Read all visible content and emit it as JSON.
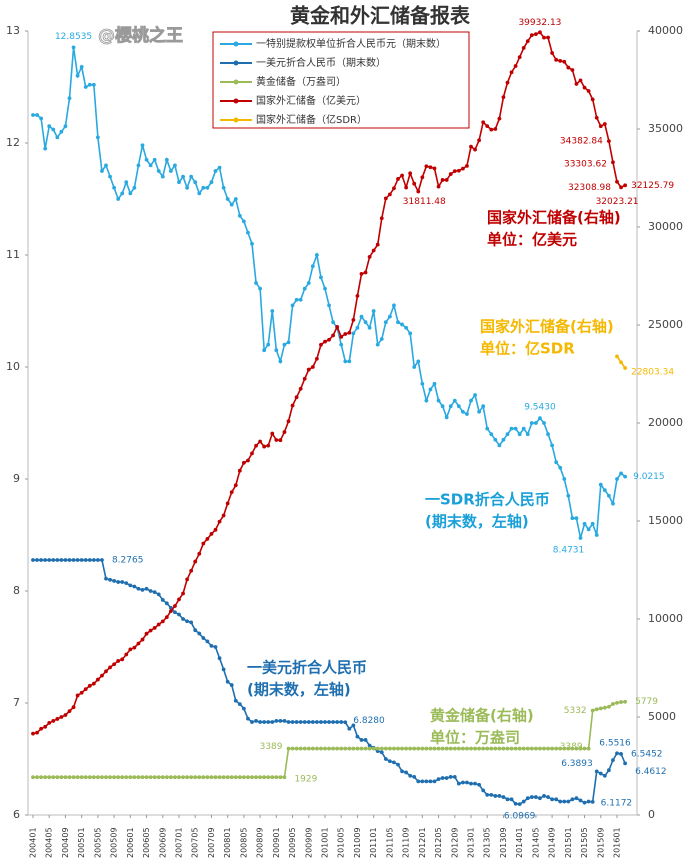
{
  "chart_data": {
    "type": "line",
    "title": "黄金和外汇储备报表",
    "watermark": "@樱桃之王",
    "ylim": [
      6,
      13
    ],
    "yticks": [
      6,
      7,
      8,
      9,
      10,
      11,
      12,
      13
    ],
    "y2lim": [
      0,
      40000
    ],
    "y2ticks": [
      0,
      5000,
      10000,
      15000,
      20000,
      25000,
      30000,
      35000,
      40000
    ],
    "grid": false,
    "legend": "top",
    "categories": [
      "200401",
      null,
      null,
      null,
      "200405",
      null,
      null,
      null,
      "200409",
      null,
      null,
      null,
      "200501",
      null,
      null,
      null,
      "200505",
      null,
      null,
      null,
      "200509",
      null,
      null,
      null,
      "200601",
      null,
      null,
      null,
      "200605",
      null,
      null,
      null,
      "200609",
      null,
      null,
      null,
      "200701",
      null,
      null,
      null,
      "200705",
      null,
      null,
      null,
      "200709",
      null,
      null,
      null,
      "200801",
      null,
      null,
      null,
      "200805",
      null,
      null,
      null,
      "200809",
      null,
      null,
      null,
      "200901",
      null,
      null,
      null,
      "200905",
      null,
      null,
      null,
      "200909",
      null,
      null,
      null,
      "201001",
      null,
      null,
      null,
      "201005",
      null,
      null,
      null,
      "201009",
      null,
      null,
      null,
      "201101",
      null,
      null,
      null,
      "201105",
      null,
      null,
      null,
      "201109",
      null,
      null,
      null,
      "201201",
      null,
      null,
      null,
      "201205",
      null,
      null,
      null,
      "201209",
      null,
      null,
      null,
      "201301",
      null,
      null,
      null,
      "201305",
      null,
      null,
      null,
      "201309",
      null,
      null,
      null,
      "201401",
      null,
      null,
      null,
      "201405",
      null,
      null,
      null,
      "201409",
      null,
      null,
      null,
      "201501",
      null,
      null,
      null,
      "201505",
      null,
      null,
      null,
      "201509",
      null,
      null,
      null,
      "201601",
      null,
      null
    ],
    "series": [
      {
        "name": "一特别提款权单位折合人民币元（期末数）",
        "color": "#29a9e0",
        "values": [
          12.25,
          12.25,
          12.22,
          11.95,
          12.15,
          12.12,
          12.05,
          12.1,
          12.15,
          12.4,
          12.8535,
          12.6,
          12.68,
          12.5,
          12.52,
          12.52,
          12.05,
          11.75,
          11.8,
          11.7,
          11.6,
          11.5,
          11.55,
          11.65,
          11.55,
          11.6,
          11.8,
          11.98,
          11.85,
          11.8,
          11.85,
          11.75,
          11.7,
          11.85,
          11.75,
          11.8,
          11.65,
          11.7,
          11.6,
          11.7,
          11.65,
          11.55,
          11.6,
          11.6,
          11.65,
          11.75,
          11.78,
          11.6,
          11.5,
          11.45,
          11.5,
          11.35,
          11.3,
          11.2,
          11.1,
          10.75,
          10.7,
          10.15,
          10.2,
          10.5,
          10.15,
          10.05,
          10.2,
          10.22,
          10.55,
          10.6,
          10.6,
          10.7,
          10.75,
          10.9,
          11.0,
          10.8,
          10.7,
          10.55,
          10.4,
          10.35,
          10.2,
          10.05,
          10.05,
          10.3,
          10.35,
          10.45,
          10.4,
          10.35,
          10.5,
          10.2,
          10.25,
          10.4,
          10.45,
          10.55,
          10.4,
          10.38,
          10.35,
          10.3,
          10.0,
          10.05,
          9.85,
          9.7,
          9.8,
          9.85,
          9.7,
          9.65,
          9.55,
          9.65,
          9.7,
          9.65,
          9.6,
          9.58,
          9.7,
          9.75,
          9.6,
          9.65,
          9.45,
          9.4,
          9.35,
          9.3,
          9.35,
          9.4,
          9.45,
          9.45,
          9.4,
          9.45,
          9.4,
          9.5,
          9.5,
          9.543,
          9.5,
          9.4,
          9.3,
          9.15,
          9.1,
          9.0,
          8.85,
          8.65,
          8.65,
          8.4731,
          8.6,
          8.55,
          8.6,
          8.5,
          8.95,
          8.9,
          8.85,
          8.78,
          9.0,
          9.05,
          9.0215
        ],
        "value_labels": {
          "10": "12.8535",
          "125": "9.5430",
          "135": "8.4731",
          "146": "9.0215"
        }
      },
      {
        "name": "一美元折合人民币（期末数）",
        "color": "#1f6fb0",
        "values": [
          8.2765,
          8.2765,
          8.2765,
          8.2765,
          8.2765,
          8.2765,
          8.2765,
          8.2765,
          8.2765,
          8.2765,
          8.2765,
          8.2765,
          8.2765,
          8.2765,
          8.2765,
          8.2765,
          8.2765,
          8.2765,
          8.11,
          8.1,
          8.09,
          8.08,
          8.08,
          8.07,
          8.05,
          8.04,
          8.02,
          8.01,
          8.02,
          8.0,
          7.99,
          7.97,
          7.92,
          7.89,
          7.85,
          7.81,
          7.79,
          7.75,
          7.73,
          7.72,
          7.65,
          7.62,
          7.58,
          7.55,
          7.51,
          7.5,
          7.4,
          7.3,
          7.19,
          7.16,
          7.02,
          6.99,
          6.95,
          6.86,
          6.83,
          6.84,
          6.83,
          6.83,
          6.83,
          6.83,
          6.84,
          6.84,
          6.84,
          6.83,
          6.83,
          6.83,
          6.83,
          6.83,
          6.83,
          6.83,
          6.83,
          6.83,
          6.83,
          6.83,
          6.83,
          6.83,
          6.83,
          6.828,
          6.77,
          6.8,
          6.7,
          6.67,
          6.67,
          6.62,
          6.6,
          6.57,
          6.56,
          6.5,
          6.48,
          6.47,
          6.45,
          6.39,
          6.38,
          6.35,
          6.34,
          6.3,
          6.3,
          6.3,
          6.3,
          6.3,
          6.32,
          6.33,
          6.33,
          6.34,
          6.34,
          6.28,
          6.29,
          6.29,
          6.28,
          6.28,
          6.27,
          6.22,
          6.18,
          6.18,
          6.17,
          6.17,
          6.16,
          6.14,
          6.14,
          6.1,
          6.0969,
          6.12,
          6.15,
          6.16,
          6.16,
          6.15,
          6.17,
          6.16,
          6.14,
          6.14,
          6.12,
          6.12,
          6.12,
          6.14,
          6.15,
          6.13,
          6.11,
          6.12,
          6.1172,
          6.3893,
          6.37,
          6.35,
          6.4,
          6.49,
          6.5516,
          6.5452,
          6.4612
        ],
        "value_labels": {
          "17": "8.2765",
          "77": "6.8280",
          "120": "6.0969",
          "138": "6.1172",
          "139": "6.3893",
          "144": "6.5516",
          "145": "6.5452",
          "146": "6.4612"
        }
      },
      {
        "name": "黄金储备（万盎司）",
        "color": "#9bbb59",
        "axis": "y2",
        "values": [
          1929,
          1929,
          1929,
          1929,
          1929,
          1929,
          1929,
          1929,
          1929,
          1929,
          1929,
          1929,
          1929,
          1929,
          1929,
          1929,
          1929,
          1929,
          1929,
          1929,
          1929,
          1929,
          1929,
          1929,
          1929,
          1929,
          1929,
          1929,
          1929,
          1929,
          1929,
          1929,
          1929,
          1929,
          1929,
          1929,
          1929,
          1929,
          1929,
          1929,
          1929,
          1929,
          1929,
          1929,
          1929,
          1929,
          1929,
          1929,
          1929,
          1929,
          1929,
          1929,
          1929,
          1929,
          1929,
          1929,
          1929,
          1929,
          1929,
          1929,
          1929,
          1929,
          1929,
          3389,
          3389,
          3389,
          3389,
          3389,
          3389,
          3389,
          3389,
          3389,
          3389,
          3389,
          3389,
          3389,
          3389,
          3389,
          3389,
          3389,
          3389,
          3389,
          3389,
          3389,
          3389,
          3389,
          3389,
          3389,
          3389,
          3389,
          3389,
          3389,
          3389,
          3389,
          3389,
          3389,
          3389,
          3389,
          3389,
          3389,
          3389,
          3389,
          3389,
          3389,
          3389,
          3389,
          3389,
          3389,
          3389,
          3389,
          3389,
          3389,
          3389,
          3389,
          3389,
          3389,
          3389,
          3389,
          3389,
          3389,
          3389,
          3389,
          3389,
          3389,
          3389,
          3389,
          3389,
          3389,
          3389,
          3389,
          3389,
          3389,
          3389,
          3389,
          3389,
          3389,
          3389,
          3389,
          5332,
          5393,
          5436,
          5475,
          5524,
          5666,
          5719,
          5762,
          5779
        ],
        "value_labels": {
          "62": "1929",
          "63": "3389",
          "137": "3389",
          "138": "5332",
          "146": "5779"
        }
      },
      {
        "name": "国家外汇储备（亿美元）",
        "color": "#c00000",
        "axis": "y2",
        "values": [
          4150,
          4200,
          4400,
          4500,
          4700,
          4800,
          4900,
          5000,
          5100,
          5300,
          5500,
          6099,
          6236,
          6423,
          6591,
          6700,
          6910,
          7110,
          7330,
          7532,
          7690,
          7860,
          7942,
          8189,
          8451,
          8537,
          8751,
          8950,
          9250,
          9411,
          9545,
          9720,
          9879,
          10096,
          10400,
          10663,
          11000,
          11300,
          12020,
          12460,
          12930,
          13326,
          13850,
          14086,
          14340,
          14550,
          14970,
          15282,
          15898,
          16471,
          16822,
          17566,
          17970,
          18088,
          18451,
          18841,
          19056,
          18797,
          18847,
          19460,
          19134,
          19122,
          19537,
          20089,
          20893,
          21316,
          21746,
          22257,
          22726,
          22856,
          23279,
          23992,
          24153,
          24246,
          24470,
          24905,
          24395,
          24542,
          24605,
          25263,
          26483,
          27608,
          27678,
          28473,
          28800,
          29100,
          30447,
          31458,
          31663,
          31975,
          32452,
          32625,
          32017,
          32738,
          32209,
          31811.48,
          32536,
          33100,
          33050,
          32989,
          32061,
          32400,
          32400,
          32700,
          32850,
          32870,
          32980,
          33116,
          34100,
          33950,
          34426,
          35345,
          35148,
          34967,
          35000,
          35530,
          36627,
          37366,
          37895,
          38213,
          38666,
          39137,
          39481,
          39788,
          39839,
          39932.13,
          39662,
          39668,
          38877,
          38529,
          38473,
          38430,
          38134,
          38012,
          37300,
          37480,
          37111,
          36938,
          36513,
          35574,
          35141,
          35255,
          34382.84,
          33303.62,
          32308.98,
          32023.21,
          32125.79
        ],
        "value_labels": {
          "95": "31811.48",
          "125": "39932.13",
          "142": "34382.84",
          "143": "33303.62",
          "144": "32308.98",
          "145": "32023.21",
          "146": "32125.79"
        }
      },
      {
        "name": "国家外汇储备（亿SDR）",
        "color": "#f5b800",
        "axis": "y2",
        "values": [
          null,
          null,
          null,
          null,
          null,
          null,
          null,
          null,
          null,
          null,
          null,
          null,
          null,
          null,
          null,
          null,
          null,
          null,
          null,
          null,
          null,
          null,
          null,
          null,
          null,
          null,
          null,
          null,
          null,
          null,
          null,
          null,
          null,
          null,
          null,
          null,
          null,
          null,
          null,
          null,
          null,
          null,
          null,
          null,
          null,
          null,
          null,
          null,
          null,
          null,
          null,
          null,
          null,
          null,
          null,
          null,
          null,
          null,
          null,
          null,
          null,
          null,
          null,
          null,
          null,
          null,
          null,
          null,
          null,
          null,
          null,
          null,
          null,
          null,
          null,
          null,
          null,
          null,
          null,
          null,
          null,
          null,
          null,
          null,
          null,
          null,
          null,
          null,
          null,
          null,
          null,
          null,
          null,
          null,
          null,
          null,
          null,
          null,
          null,
          null,
          null,
          null,
          null,
          null,
          null,
          null,
          null,
          null,
          null,
          null,
          null,
          null,
          null,
          null,
          null,
          null,
          null,
          null,
          null,
          null,
          null,
          null,
          null,
          null,
          null,
          null,
          null,
          null,
          null,
          null,
          null,
          null,
          null,
          null,
          null,
          null,
          null,
          null,
          null,
          null,
          null,
          null,
          null,
          null,
          23400,
          23100,
          22803.34
        ],
        "value_labels": {
          "146": "22803.34"
        }
      }
    ],
    "annotations": [
      {
        "lines": [
          "一SDR折合人民币",
          "(期末数，左轴)"
        ],
        "color": "#1aa0d8"
      },
      {
        "lines": [
          "一美元折合人民币",
          "(期末数，左轴)"
        ],
        "color": "#1f6fb0"
      },
      {
        "lines": [
          "国家外汇储备(右轴)",
          "单位：亿美元"
        ],
        "color": "#c00000"
      },
      {
        "lines": [
          "国家外汇储备(右轴)",
          "单位：亿SDR"
        ],
        "color": "#f5b800"
      },
      {
        "lines": [
          "黄金储备(右轴)",
          "单位：万盎司"
        ],
        "color": "#9bbb59"
      }
    ]
  }
}
